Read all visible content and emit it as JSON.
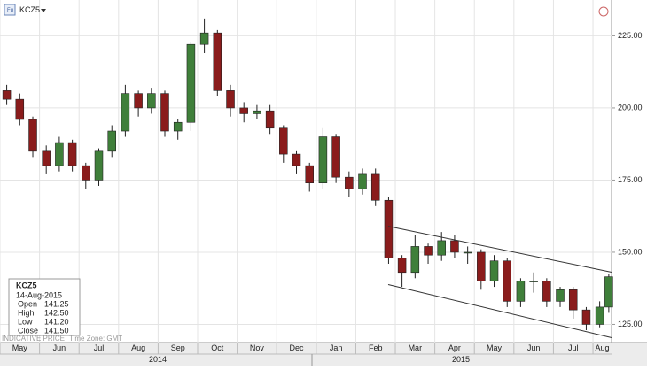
{
  "chart_data": {
    "type": "candlestick",
    "symbol": "KCZ5",
    "x": [
      0.17,
      0.5,
      0.83,
      1.17,
      1.5,
      1.83,
      2.17,
      2.5,
      2.83,
      3.17,
      3.5,
      3.83,
      4.17,
      4.5,
      4.83,
      5.17,
      5.5,
      5.83,
      6.17,
      6.5,
      6.83,
      7.17,
      7.5,
      7.83,
      8.17,
      8.5,
      8.83,
      9.17,
      9.5,
      9.83,
      10.17,
      10.5,
      10.83,
      11.17,
      11.5,
      11.83,
      12.17,
      12.5,
      12.83,
      13.17,
      13.5,
      13.83,
      14.17,
      14.5,
      14.83,
      15.17,
      15.4
    ],
    "open": [
      206,
      203,
      196,
      185,
      180,
      188,
      180,
      175,
      185,
      192,
      205,
      200,
      205,
      192,
      195,
      222,
      226,
      206,
      200,
      198,
      199,
      193,
      184,
      180,
      174,
      190,
      176,
      172,
      177,
      168,
      148,
      143,
      152,
      149,
      154,
      150,
      150,
      140,
      147,
      133,
      140,
      140,
      133,
      137,
      130,
      125,
      131
    ],
    "high": [
      208,
      205,
      197,
      187,
      190,
      189,
      181,
      186,
      194,
      208,
      206,
      207,
      206,
      196,
      223,
      231,
      227,
      208,
      202,
      201,
      201,
      194,
      185,
      181,
      193,
      191,
      178,
      179,
      179,
      169,
      149,
      156,
      153,
      157,
      156,
      152,
      151,
      149,
      148,
      141,
      143,
      141,
      138,
      138,
      131,
      133,
      142.5
    ],
    "low": [
      201,
      194,
      183,
      177,
      178,
      178,
      172,
      173,
      183,
      190,
      197,
      198,
      190,
      189,
      192,
      219,
      204,
      197,
      195,
      196,
      191,
      181,
      177,
      171,
      172,
      174,
      169,
      170,
      166,
      146,
      138,
      141,
      146,
      147,
      148,
      146,
      137,
      138,
      131,
      131,
      136,
      131,
      131,
      127,
      123,
      124,
      129
    ],
    "close": [
      203,
      196,
      185,
      180,
      188,
      180,
      175,
      185,
      192,
      205,
      200,
      205,
      192,
      195,
      222,
      226,
      206,
      200,
      198,
      199,
      193,
      184,
      180,
      174,
      190,
      176,
      172,
      177,
      168,
      148,
      143,
      152,
      149,
      154,
      150,
      150,
      140,
      147,
      133,
      140,
      140,
      133,
      137,
      130,
      125,
      131,
      141.5
    ],
    "up_color": "#3f7f3a",
    "down_color": "#8a1c1c",
    "xlim": [
      0,
      15.47
    ],
    "xticks": [
      {
        "value": 0,
        "label": "May"
      },
      {
        "value": 1,
        "label": "Jun"
      },
      {
        "value": 2,
        "label": "Jul"
      },
      {
        "value": 3,
        "label": "Aug"
      },
      {
        "value": 4,
        "label": "Sep"
      },
      {
        "value": 5,
        "label": "Oct"
      },
      {
        "value": 6,
        "label": "Nov"
      },
      {
        "value": 7,
        "label": "Dec"
      },
      {
        "value": 8,
        "label": "Jan"
      },
      {
        "value": 9,
        "label": "Feb"
      },
      {
        "value": 10,
        "label": "Mar"
      },
      {
        "value": 11,
        "label": "Apr"
      },
      {
        "value": 12,
        "label": "May"
      },
      {
        "value": 13,
        "label": "Jun"
      },
      {
        "value": 14,
        "label": "Jul"
      },
      {
        "value": 15,
        "label": "Aug"
      }
    ],
    "years": [
      "2014",
      "2015"
    ],
    "ylim": [
      118.7,
      237.4
    ],
    "yticks": [
      {
        "value": 125,
        "label": "125.00"
      },
      {
        "value": 150,
        "label": "150.00"
      },
      {
        "value": 175,
        "label": "175.00"
      },
      {
        "value": 200,
        "label": "200.00"
      },
      {
        "value": 225,
        "label": "225.00"
      }
    ],
    "grid": true,
    "trend_lines": [
      {
        "x": [
          9.82,
          15.47
        ],
        "values": [
          159,
          143.1
        ]
      },
      {
        "x": [
          9.82,
          15.47
        ],
        "values": [
          138.8,
          120.4
        ]
      }
    ],
    "info": {
      "symbol": "KCZ5",
      "date": "14-Aug-2015",
      "rows": [
        [
          "Open",
          "141.25"
        ],
        [
          "High",
          "142.50"
        ],
        [
          "Low",
          "141.20"
        ],
        [
          "Close",
          "141.50"
        ]
      ]
    },
    "footer": [
      "INDICATIVE PRICE",
      "Time Zone: GMT"
    ]
  }
}
